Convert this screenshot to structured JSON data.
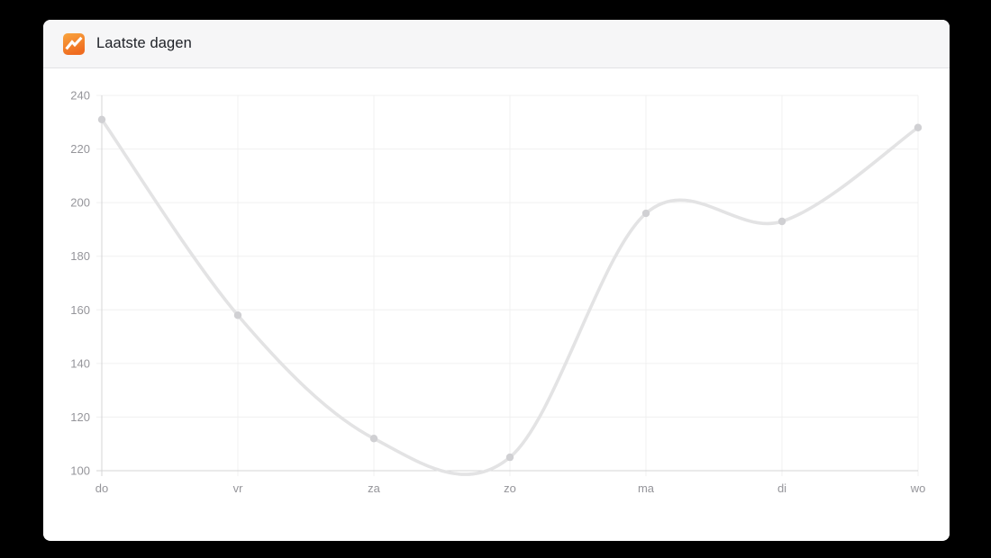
{
  "header": {
    "title": "Laatste dagen",
    "icon": "analytics-trend-icon"
  },
  "colors": {
    "page_bg": "#000000",
    "card_bg": "#ffffff",
    "header_bg": "#f6f6f7",
    "header_border": "#e2e2e4",
    "title_text": "#1d2026",
    "grid_line": "#f0f0f0",
    "axis_line": "#d4d4d6",
    "series_line": "#e3e3e4",
    "point_fill": "#d0d0d3",
    "tick_label": "#95959a",
    "icon_orange_top": "#f9a53e",
    "icon_orange_bottom": "#ef6c20",
    "icon_glyph": "#ffffff"
  },
  "chart_data": {
    "type": "line",
    "title": "Laatste dagen",
    "categories": [
      "do",
      "vr",
      "za",
      "zo",
      "ma",
      "di",
      "wo"
    ],
    "values": [
      231,
      158,
      112,
      105,
      196,
      193,
      228
    ],
    "xlabel": "",
    "ylabel": "",
    "ylim": [
      100,
      240
    ],
    "ytick_step": 20,
    "grid": true,
    "smooth": true,
    "legend_position": "none",
    "points_visible": true
  }
}
